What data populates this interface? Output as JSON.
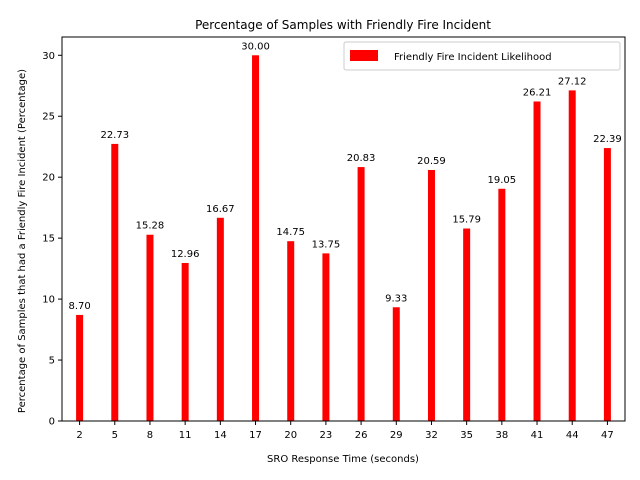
{
  "chart_data": {
    "type": "bar",
    "title": "Percentage of Samples with Friendly Fire Incident",
    "xlabel": "SRO Response Time (seconds)",
    "ylabel": "Percentage of Samples that had a Friendly Fire Incident (Percentage)",
    "categories": [
      "2",
      "5",
      "8",
      "11",
      "14",
      "17",
      "20",
      "23",
      "26",
      "29",
      "32",
      "35",
      "38",
      "41",
      "44",
      "47"
    ],
    "series": [
      {
        "name": "Friendly Fire Incident Likelihood",
        "values": [
          8.7,
          22.73,
          15.28,
          12.96,
          16.67,
          30.0,
          14.75,
          13.75,
          20.83,
          9.33,
          20.59,
          15.79,
          19.05,
          26.21,
          27.12,
          22.39
        ],
        "labels": [
          "8.70",
          "22.73",
          "15.28",
          "12.96",
          "16.67",
          "30.00",
          "14.75",
          "13.75",
          "20.83",
          "9.33",
          "20.59",
          "15.79",
          "19.05",
          "26.21",
          "27.12",
          "22.39"
        ],
        "color": "#ff0000"
      }
    ],
    "yticks": [
      0,
      5,
      10,
      15,
      20,
      25,
      30
    ],
    "ylim": [
      0,
      31.5
    ],
    "grid": false,
    "legend_position": "upper right"
  }
}
